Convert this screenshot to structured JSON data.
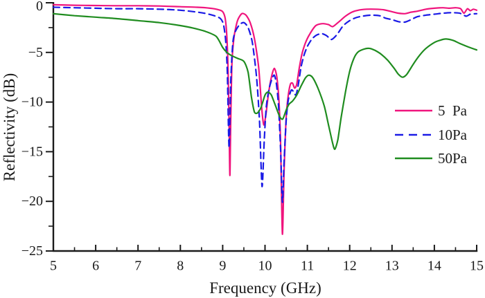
{
  "figure": {
    "background": "#ffffff",
    "axis_color": "#1a1a1a"
  },
  "chart_data": {
    "type": "line",
    "title": "",
    "xlabel": "Frequency (GHz)",
    "ylabel": "Reflectivity (dB)",
    "xlim": [
      5,
      15
    ],
    "ylim": [
      -25,
      0
    ],
    "grid": false,
    "legend_position": "right-middle",
    "x_ticks": [
      5,
      6,
      7,
      8,
      9,
      10,
      11,
      12,
      13,
      14,
      15
    ],
    "x_tick_labels": [
      "5",
      "6",
      "7",
      "8",
      "9",
      "10",
      "11",
      "12",
      "13",
      "14",
      "15"
    ],
    "x_minor_ticks": [
      5.5,
      6.5,
      7.5,
      8.5,
      9.5,
      10.5,
      11.5,
      12.5,
      13.5,
      14.5
    ],
    "y_ticks": [
      0,
      -5,
      -10,
      -15,
      -20,
      -25
    ],
    "y_tick_labels": [
      "0",
      "−5",
      "−10",
      "−15",
      "−20",
      "−25"
    ],
    "y_minor_ticks": [
      -2.5,
      -7.5,
      -12.5,
      -17.5,
      -22.5
    ],
    "series": [
      {
        "id": "5pa",
        "name": "5  Pa",
        "color": "#f0147d",
        "style": "solid",
        "points": [
          [
            5.0,
            -0.2
          ],
          [
            5.5,
            -0.25
          ],
          [
            6.0,
            -0.28
          ],
          [
            6.5,
            -0.3
          ],
          [
            7.0,
            -0.3
          ],
          [
            7.5,
            -0.33
          ],
          [
            8.0,
            -0.4
          ],
          [
            8.4,
            -0.45
          ],
          [
            8.7,
            -0.55
          ],
          [
            8.9,
            -0.7
          ],
          [
            9.0,
            -0.9
          ],
          [
            9.06,
            -1.6
          ],
          [
            9.1,
            -3.5
          ],
          [
            9.13,
            -7.0
          ],
          [
            9.15,
            -12.0
          ],
          [
            9.17,
            -17.4
          ],
          [
            9.19,
            -12.0
          ],
          [
            9.22,
            -6.0
          ],
          [
            9.27,
            -3.4
          ],
          [
            9.35,
            -1.8
          ],
          [
            9.45,
            -1.1
          ],
          [
            9.55,
            -1.25
          ],
          [
            9.65,
            -2.0
          ],
          [
            9.75,
            -3.6
          ],
          [
            9.85,
            -6.5
          ],
          [
            9.92,
            -10.5
          ],
          [
            9.97,
            -12.3
          ],
          [
            10.02,
            -11.3
          ],
          [
            10.08,
            -9.2
          ],
          [
            10.15,
            -7.5
          ],
          [
            10.22,
            -6.6
          ],
          [
            10.28,
            -7.5
          ],
          [
            10.33,
            -10.0
          ],
          [
            10.37,
            -14.5
          ],
          [
            10.41,
            -23.3
          ],
          [
            10.45,
            -17.0
          ],
          [
            10.5,
            -11.5
          ],
          [
            10.55,
            -9.3
          ],
          [
            10.6,
            -8.2
          ],
          [
            10.65,
            -8.1
          ],
          [
            10.7,
            -8.6
          ],
          [
            10.75,
            -8.2
          ],
          [
            10.8,
            -6.8
          ],
          [
            10.87,
            -5.2
          ],
          [
            10.95,
            -4.1
          ],
          [
            11.05,
            -3.2
          ],
          [
            11.2,
            -2.3
          ],
          [
            11.36,
            -2.1
          ],
          [
            11.5,
            -2.2
          ],
          [
            11.6,
            -2.4
          ],
          [
            11.75,
            -1.9
          ],
          [
            11.9,
            -1.35
          ],
          [
            12.05,
            -0.95
          ],
          [
            12.2,
            -0.75
          ],
          [
            12.4,
            -0.65
          ],
          [
            12.6,
            -0.65
          ],
          [
            12.8,
            -0.7
          ],
          [
            13.0,
            -0.9
          ],
          [
            13.15,
            -1.05
          ],
          [
            13.3,
            -1.1
          ],
          [
            13.45,
            -0.95
          ],
          [
            13.6,
            -0.85
          ],
          [
            13.8,
            -0.65
          ],
          [
            14.0,
            -0.55
          ],
          [
            14.2,
            -0.5
          ],
          [
            14.35,
            -0.55
          ],
          [
            14.5,
            -0.5
          ],
          [
            14.62,
            -0.6
          ],
          [
            14.7,
            -1.05
          ],
          [
            14.78,
            -0.6
          ],
          [
            14.85,
            -0.8
          ],
          [
            14.92,
            -0.65
          ],
          [
            15.0,
            -0.75
          ]
        ]
      },
      {
        "id": "10pa",
        "name": "10Pa",
        "color": "#1a1ae6",
        "style": "dashed",
        "points": [
          [
            5.0,
            -0.45
          ],
          [
            5.5,
            -0.5
          ],
          [
            6.0,
            -0.55
          ],
          [
            6.5,
            -0.6
          ],
          [
            7.0,
            -0.6
          ],
          [
            7.5,
            -0.65
          ],
          [
            8.0,
            -0.75
          ],
          [
            8.5,
            -1.0
          ],
          [
            8.8,
            -1.3
          ],
          [
            8.95,
            -1.6
          ],
          [
            9.02,
            -2.2
          ],
          [
            9.07,
            -3.8
          ],
          [
            9.11,
            -7.0
          ],
          [
            9.15,
            -14.6
          ],
          [
            9.19,
            -8.0
          ],
          [
            9.24,
            -4.0
          ],
          [
            9.3,
            -2.9
          ],
          [
            9.4,
            -2.2
          ],
          [
            9.5,
            -2.0
          ],
          [
            9.6,
            -2.5
          ],
          [
            9.7,
            -4.0
          ],
          [
            9.8,
            -7.5
          ],
          [
            9.87,
            -12.0
          ],
          [
            9.93,
            -18.5
          ],
          [
            9.98,
            -14.0
          ],
          [
            10.03,
            -10.5
          ],
          [
            10.1,
            -8.6
          ],
          [
            10.17,
            -7.6
          ],
          [
            10.22,
            -7.3
          ],
          [
            10.27,
            -8.2
          ],
          [
            10.32,
            -10.5
          ],
          [
            10.37,
            -15.0
          ],
          [
            10.41,
            -20.1
          ],
          [
            10.45,
            -16.0
          ],
          [
            10.5,
            -11.8
          ],
          [
            10.55,
            -9.8
          ],
          [
            10.62,
            -8.8
          ],
          [
            10.68,
            -9.0
          ],
          [
            10.73,
            -9.3
          ],
          [
            10.78,
            -8.4
          ],
          [
            10.85,
            -6.5
          ],
          [
            10.92,
            -5.3
          ],
          [
            11.0,
            -4.4
          ],
          [
            11.1,
            -3.7
          ],
          [
            11.2,
            -3.3
          ],
          [
            11.33,
            -3.1
          ],
          [
            11.45,
            -3.3
          ],
          [
            11.57,
            -3.7
          ],
          [
            11.7,
            -3.2
          ],
          [
            11.85,
            -2.3
          ],
          [
            12.0,
            -1.8
          ],
          [
            12.15,
            -1.5
          ],
          [
            12.3,
            -1.35
          ],
          [
            12.5,
            -1.25
          ],
          [
            12.7,
            -1.3
          ],
          [
            12.85,
            -1.55
          ],
          [
            13.0,
            -1.7
          ],
          [
            13.15,
            -1.9
          ],
          [
            13.3,
            -1.95
          ],
          [
            13.45,
            -1.7
          ],
          [
            13.6,
            -1.4
          ],
          [
            13.8,
            -1.25
          ],
          [
            14.0,
            -1.15
          ],
          [
            14.2,
            -1.05
          ],
          [
            14.4,
            -1.0
          ],
          [
            14.6,
            -1.05
          ],
          [
            14.75,
            -1.35
          ],
          [
            14.85,
            -1.15
          ],
          [
            15.0,
            -1.1
          ]
        ]
      },
      {
        "id": "50pa",
        "name": "50Pa",
        "color": "#1f8c1f",
        "style": "solid",
        "points": [
          [
            5.0,
            -1.1
          ],
          [
            5.5,
            -1.3
          ],
          [
            6.0,
            -1.45
          ],
          [
            6.5,
            -1.6
          ],
          [
            7.0,
            -1.8
          ],
          [
            7.5,
            -2.0
          ],
          [
            8.0,
            -2.3
          ],
          [
            8.3,
            -2.55
          ],
          [
            8.6,
            -2.9
          ],
          [
            8.85,
            -3.4
          ],
          [
            9.0,
            -4.5
          ],
          [
            9.1,
            -5.0
          ],
          [
            9.2,
            -5.3
          ],
          [
            9.35,
            -5.6
          ],
          [
            9.5,
            -5.9
          ],
          [
            9.6,
            -7.0
          ],
          [
            9.68,
            -9.5
          ],
          [
            9.75,
            -11.0
          ],
          [
            9.82,
            -11.1
          ],
          [
            9.9,
            -10.6
          ],
          [
            10.0,
            -9.3
          ],
          [
            10.07,
            -9.0
          ],
          [
            10.15,
            -9.3
          ],
          [
            10.25,
            -10.4
          ],
          [
            10.35,
            -11.5
          ],
          [
            10.42,
            -11.7
          ],
          [
            10.5,
            -10.8
          ],
          [
            10.57,
            -10.2
          ],
          [
            10.65,
            -9.9
          ],
          [
            10.75,
            -9.3
          ],
          [
            10.85,
            -8.4
          ],
          [
            10.95,
            -7.6
          ],
          [
            11.03,
            -7.3
          ],
          [
            11.12,
            -7.5
          ],
          [
            11.25,
            -8.6
          ],
          [
            11.4,
            -10.4
          ],
          [
            11.5,
            -12.3
          ],
          [
            11.6,
            -14.2
          ],
          [
            11.65,
            -14.75
          ],
          [
            11.72,
            -13.8
          ],
          [
            11.8,
            -11.5
          ],
          [
            11.9,
            -9.0
          ],
          [
            12.0,
            -6.9
          ],
          [
            12.1,
            -5.6
          ],
          [
            12.2,
            -4.95
          ],
          [
            12.35,
            -4.65
          ],
          [
            12.48,
            -4.6
          ],
          [
            12.6,
            -4.8
          ],
          [
            12.75,
            -5.2
          ],
          [
            12.9,
            -5.8
          ],
          [
            13.05,
            -6.6
          ],
          [
            13.15,
            -7.2
          ],
          [
            13.25,
            -7.5
          ],
          [
            13.35,
            -7.2
          ],
          [
            13.5,
            -6.2
          ],
          [
            13.65,
            -5.3
          ],
          [
            13.8,
            -4.6
          ],
          [
            14.0,
            -4.0
          ],
          [
            14.15,
            -3.75
          ],
          [
            14.28,
            -3.65
          ],
          [
            14.45,
            -3.8
          ],
          [
            14.6,
            -4.1
          ],
          [
            14.8,
            -4.45
          ],
          [
            15.0,
            -4.75
          ]
        ]
      }
    ]
  }
}
